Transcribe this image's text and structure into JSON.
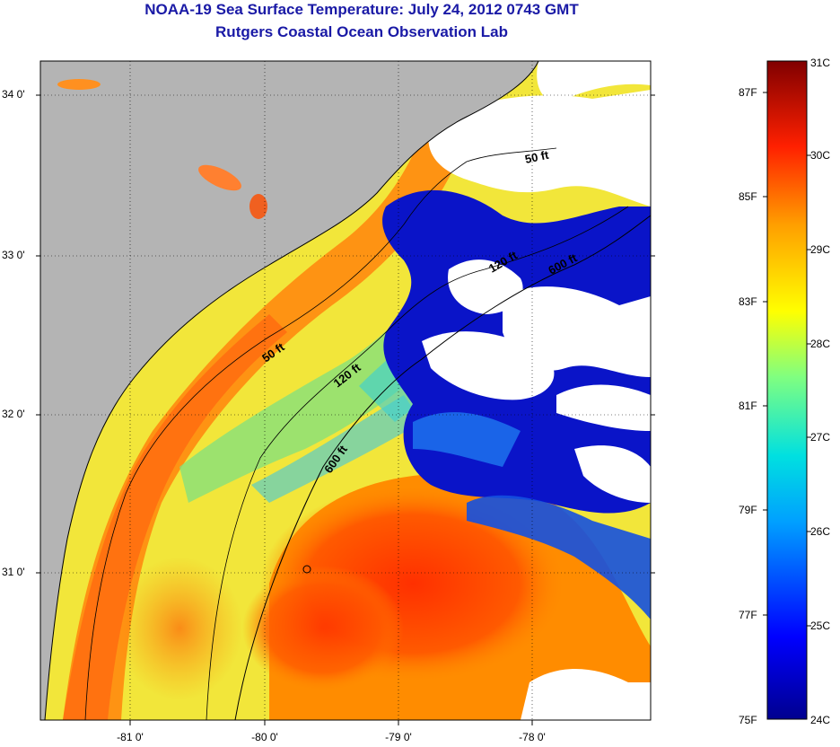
{
  "header": {
    "title": "NOAA-19 Sea Surface Temperature:  July 24, 2012 0743 GMT",
    "subtitle": "Rutgers Coastal Ocean Observation Lab"
  },
  "colors": {
    "title": "#1a1aa6",
    "land": "#b4b4b4",
    "cloud": "#ffffff"
  },
  "map": {
    "lat_labels": [
      "34 0'",
      "33 0'",
      "32 0'",
      "31 0'"
    ],
    "lon_labels": [
      "-81 0'",
      "-80 0'",
      "-79 0'",
      "-78 0'"
    ],
    "depth_labels": [
      "50 ft",
      "50 ft",
      "120 ft",
      "120 ft",
      "600 ft",
      "600 ft"
    ]
  },
  "colorbar": {
    "celsius": [
      "31C",
      "30C",
      "29C",
      "28C",
      "27C",
      "26C",
      "25C",
      "24C"
    ],
    "fahrenheit": [
      "87F",
      "85F",
      "83F",
      "81F",
      "79F",
      "77F",
      "75F"
    ]
  }
}
